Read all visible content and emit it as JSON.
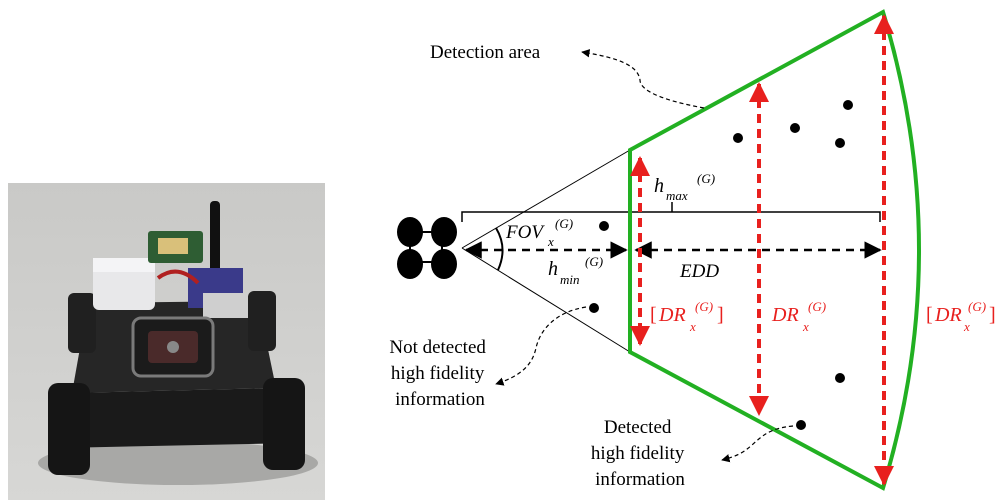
{
  "labels": {
    "detection_area": "Detection area",
    "not_detected": [
      "Not detected",
      "high fidelity",
      "information"
    ],
    "detected": [
      "Detected",
      "high fidelity",
      "information"
    ],
    "fov": {
      "main": "FOV",
      "sub": "x",
      "sup": "(G)"
    },
    "h_max": {
      "main": "h",
      "sub": "max",
      "sup": "(G)"
    },
    "h_min": {
      "main": "h",
      "sub": "min",
      "sup": "(G)"
    },
    "edd": "EDD",
    "dr_near": {
      "open": "[",
      "main": "DR",
      "sub": "x",
      "sup": "(G)",
      "close": "]"
    },
    "dr_mid": {
      "main": "DR",
      "sub": "x",
      "sup": "(G)"
    },
    "dr_far": {
      "open": "[",
      "main": "DR",
      "sub": "x",
      "sup": "(G)",
      "close": "]"
    }
  },
  "colors": {
    "area_outline": "#22b022",
    "range_arrows": "#e8201e",
    "ink": "#000000"
  },
  "photo": {
    "subject": "small wheeled robot with antenna and sensor board"
  }
}
